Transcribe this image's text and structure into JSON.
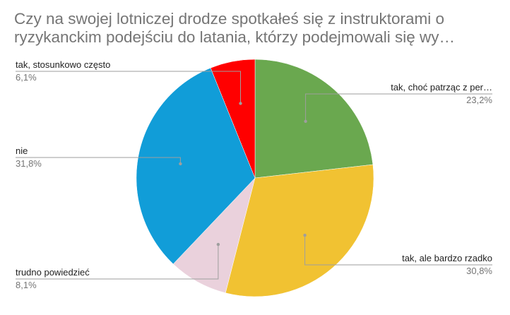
{
  "chart_data": {
    "type": "pie",
    "title_lines": [
      "Czy na swojej lotniczej drodze spotkałeś się z instruktorami o",
      "ryzykanckim podejściu do latania, którzy podejmowali się wy…"
    ],
    "slices": [
      {
        "label": "tak, choć patrząc z per…",
        "value": 23.2,
        "percent_label": "23,2%",
        "color": "#6aa84f"
      },
      {
        "label": "tak, ale bardzo rzadko",
        "value": 30.8,
        "percent_label": "30,8%",
        "color": "#f1c232"
      },
      {
        "label": "trudno powiedzieć",
        "value": 8.1,
        "percent_label": "8,1%",
        "color": "#ead1dc"
      },
      {
        "label": "nie",
        "value": 31.8,
        "percent_label": "31,8%",
        "color": "#119dd8"
      },
      {
        "label": "tak, stosunkowo często",
        "value": 6.1,
        "percent_label": "6,1%",
        "color": "#ff0000"
      }
    ]
  }
}
